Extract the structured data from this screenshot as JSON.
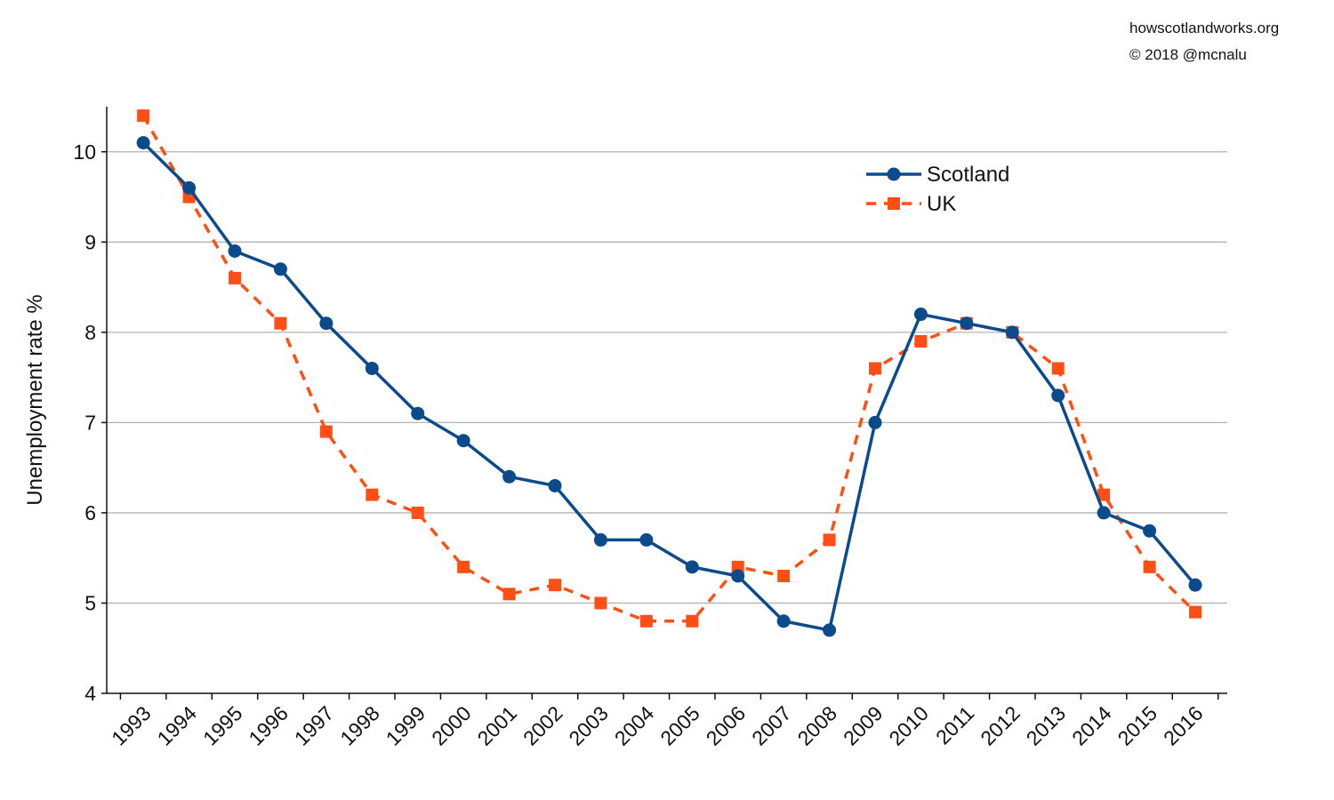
{
  "credits": {
    "site": "howscotlandworks.org",
    "copyright": "© 2018  @mcnalu"
  },
  "chart_data": {
    "type": "line",
    "title": "",
    "xlabel": "",
    "ylabel": "Unemployment rate %",
    "ylim": [
      4,
      10.5
    ],
    "yticks": [
      4,
      5,
      6,
      7,
      8,
      9,
      10
    ],
    "grid": true,
    "legend_position": "top-right",
    "categories": [
      "1993",
      "1994",
      "1995",
      "1996",
      "1997",
      "1998",
      "1999",
      "2000",
      "2001",
      "2002",
      "2003",
      "2004",
      "2005",
      "2006",
      "2007",
      "2008",
      "2009",
      "2010",
      "2011",
      "2012",
      "2013",
      "2014",
      "2015",
      "2016"
    ],
    "series": [
      {
        "name": "Scotland",
        "color": "#0b4a8b",
        "marker": "circle",
        "line_style": "solid",
        "values": [
          10.1,
          9.6,
          8.9,
          8.7,
          8.1,
          7.6,
          7.1,
          6.8,
          6.4,
          6.3,
          5.7,
          5.7,
          5.4,
          5.3,
          4.8,
          4.7,
          7.0,
          8.2,
          8.1,
          8.0,
          7.3,
          6.0,
          5.8,
          5.2
        ]
      },
      {
        "name": "UK",
        "color": "#ff4f14",
        "marker": "square",
        "line_style": "dashed",
        "values": [
          10.4,
          9.5,
          8.6,
          8.1,
          6.9,
          6.2,
          6.0,
          5.4,
          5.1,
          5.2,
          5.0,
          4.8,
          4.8,
          5.4,
          5.3,
          5.7,
          7.6,
          7.9,
          8.1,
          8.0,
          7.6,
          6.2,
          5.4,
          4.9
        ]
      }
    ]
  }
}
